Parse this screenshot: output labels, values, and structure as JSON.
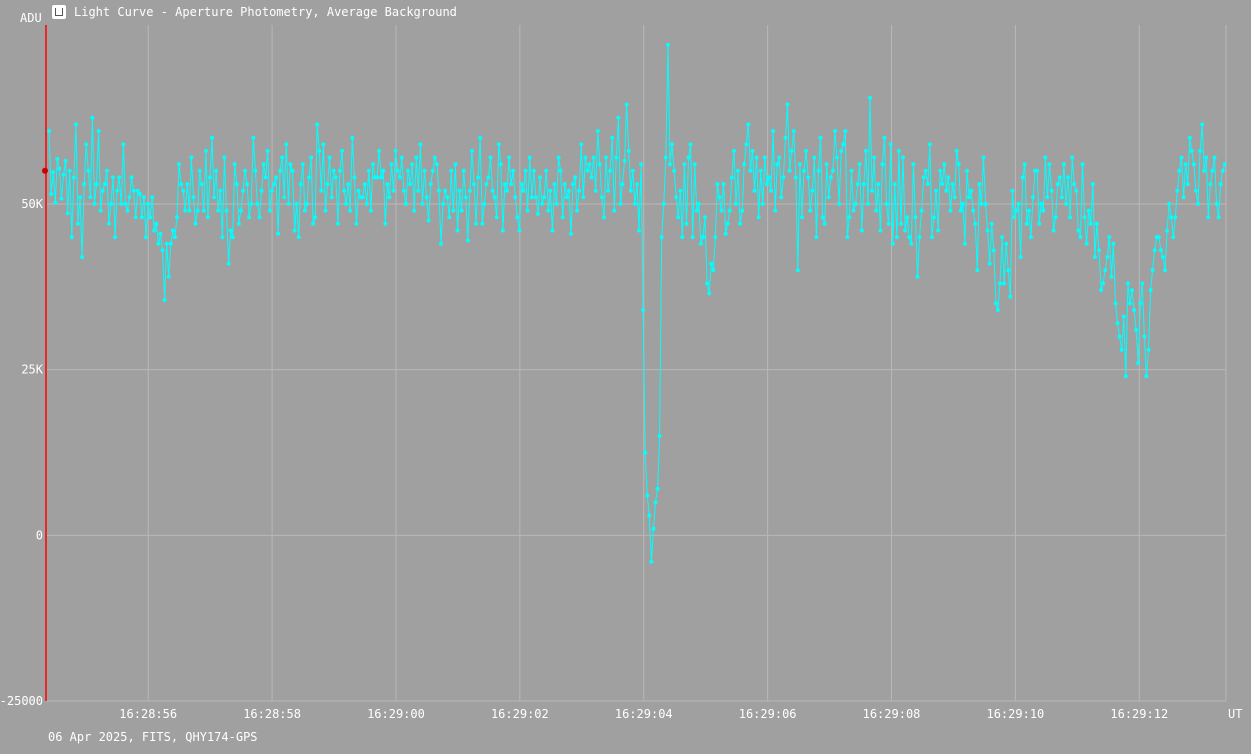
{
  "window": {
    "title": "Light Curve - Aperture Photometry, Average Background",
    "icon": "light-curve-app-icon"
  },
  "footer": {
    "info": "06 Apr 2025, FITS, QHY174-GPS"
  },
  "colors": {
    "background": "#a0a0a0",
    "grid": "#b8b8b8",
    "series": "#00ffff",
    "cursor": "#ff0000",
    "text": "#ffffff"
  },
  "chart_data": {
    "type": "line",
    "title": "Light Curve - Aperture Photometry, Average Background",
    "ylabel": "ADU",
    "xlabel": "UT",
    "ylim": [
      -25000,
      77000
    ],
    "xlim_seconds_after_16_28": [
      54.35,
      73.4
    ],
    "y_ticks": [
      {
        "value": 50000,
        "label": "50K"
      },
      {
        "value": 25000,
        "label": "25K"
      },
      {
        "value": 0,
        "label": "0"
      },
      {
        "value": -25000,
        "label": "-25000"
      }
    ],
    "x_ticks": [
      {
        "value": 56,
        "label": "16:28:56"
      },
      {
        "value": 58,
        "label": "16:28:58"
      },
      {
        "value": 60,
        "label": "16:29:00"
      },
      {
        "value": 62,
        "label": "16:29:02"
      },
      {
        "value": 64,
        "label": "16:29:04"
      },
      {
        "value": 66,
        "label": "16:29:06"
      },
      {
        "value": 68,
        "label": "16:29:08"
      },
      {
        "value": 70,
        "label": "16:29:10"
      },
      {
        "value": 72,
        "label": "16:29:12"
      }
    ],
    "grid": true,
    "cursor": {
      "x_seconds": 54.35,
      "marker_y": 55000
    },
    "series": [
      {
        "x_start_seconds": 54.4,
        "x_step_seconds": 0.0333,
        "values": [
          61000,
          51500,
          54800,
          50200,
          56800,
          55300,
          50800,
          54400,
          56500,
          48600,
          55000,
          45000,
          54000,
          62000,
          47000,
          51000,
          42000,
          53000,
          59000,
          55000,
          51000,
          63000,
          50000,
          53000,
          61000,
          49000,
          52000,
          53000,
          55000,
          47000,
          50000,
          54000,
          45000,
          52000,
          54000,
          50000,
          59000,
          50000,
          49000,
          51000,
          54000,
          52000,
          48000,
          52000,
          51500,
          48000,
          51000,
          45000,
          50000,
          48000,
          51000,
          46000,
          47000,
          44000,
          45500,
          43000,
          35500,
          44000,
          39000,
          44000,
          46000,
          45000,
          48000,
          56000,
          53000,
          52000,
          49000,
          53000,
          49000,
          57000,
          51000,
          47000,
          49000,
          55000,
          53000,
          49000,
          58000,
          48000,
          54000,
          60000,
          51000,
          55000,
          49000,
          52000,
          45000,
          57000,
          49000,
          41000,
          46000,
          45000,
          56000,
          53000,
          47000,
          49000,
          52000,
          55000,
          53000,
          48000,
          50000,
          60000,
          55000,
          50000,
          48000,
          52000,
          56000,
          54000,
          58000,
          49000,
          52000,
          53000,
          54000,
          45500,
          55000,
          57000,
          51000,
          59000,
          50000,
          56000,
          55000,
          46000,
          50000,
          45000,
          53000,
          56000,
          49000,
          50000,
          54000,
          57000,
          47000,
          48000,
          62000,
          58000,
          52000,
          59000,
          49000,
          53000,
          57000,
          51000,
          55000,
          54000,
          47000,
          55000,
          58000,
          52000,
          50000,
          53000,
          49000,
          60000,
          54000,
          47000,
          52000,
          51000,
          51000,
          53000,
          50000,
          55000,
          49000,
          56000,
          54000,
          54000,
          58000,
          54000,
          55000,
          47000,
          53000,
          51000,
          56000,
          52000,
          58000,
          55000,
          54000,
          57000,
          52000,
          50000,
          55000,
          53000,
          56000,
          49000,
          57000,
          52000,
          59000,
          50000,
          55000,
          51000,
          47500,
          53000,
          55000,
          57000,
          56000,
          52000,
          44000,
          50000,
          52000,
          51000,
          48000,
          55000,
          49000,
          56000,
          46000,
          52000,
          49000,
          55000,
          51000,
          44500,
          52000,
          58000,
          53000,
          47000,
          54000,
          60000,
          47000,
          50000,
          53000,
          54000,
          57000,
          52000,
          51000,
          48000,
          59000,
          56000,
          46000,
          53000,
          52000,
          57000,
          53000,
          55000,
          51000,
          48000,
          46000,
          53000,
          52000,
          55000,
          49000,
          57000,
          51000,
          55000,
          51000,
          48500,
          54000,
          50000,
          51000,
          55000,
          49000,
          52000,
          46000,
          53000,
          50000,
          57000,
          55000,
          48000,
          53000,
          51000,
          52000,
          45500,
          53000,
          54000,
          49000,
          52000,
          59000,
          51000,
          57000,
          55000,
          56000,
          54000,
          57000,
          52000,
          61000,
          56000,
          51000,
          48000,
          57000,
          52000,
          55000,
          60000,
          49000,
          57000,
          63000,
          50000,
          53000,
          56500,
          65000,
          58000,
          52000,
          55000,
          50000,
          53000,
          46000,
          56000,
          34000,
          12500,
          6000,
          3000,
          -4000,
          1000,
          5000,
          7000,
          15000,
          45000,
          50000,
          57000,
          74000,
          56000,
          59000,
          55000,
          51000,
          48000,
          52000,
          45000,
          56000,
          47000,
          57000,
          59000,
          45000,
          56000,
          49000,
          50000,
          44000,
          45000,
          48000,
          38000,
          36500,
          41000,
          40000,
          45000,
          53000,
          51000,
          49000,
          53000,
          45500,
          47000,
          49000,
          54000,
          58000,
          50000,
          55000,
          47000,
          49000,
          56000,
          59000,
          62000,
          55000,
          58000,
          52000,
          57000,
          48000,
          55000,
          50000,
          57000,
          53000,
          54000,
          52000,
          61000,
          49000,
          56000,
          57000,
          51000,
          54000,
          60000,
          65000,
          55000,
          58000,
          61000,
          54000,
          40000,
          56000,
          48000,
          55000,
          58000,
          54000,
          49000,
          52000,
          57000,
          45000,
          55000,
          60000,
          48000,
          47000,
          56000,
          51000,
          54000,
          55000,
          61000,
          57000,
          50000,
          58000,
          59000,
          61000,
          45000,
          48000,
          55000,
          49000,
          50000,
          53000,
          56000,
          46000,
          53000,
          58000,
          50000,
          66000,
          52000,
          57000,
          49000,
          53000,
          46000,
          56000,
          60000,
          50000,
          47000,
          59000,
          44000,
          53000,
          45000,
          58000,
          47000,
          57000,
          46000,
          48000,
          45000,
          44000,
          56000,
          48000,
          39000,
          45000,
          49000,
          54000,
          55000,
          53000,
          59000,
          45000,
          48000,
          52000,
          46000,
          55000,
          53000,
          56000,
          52000,
          54000,
          49000,
          53000,
          51000,
          58000,
          56000,
          49000,
          50000,
          44000,
          55000,
          51000,
          52000,
          49000,
          47000,
          40000,
          53000,
          50000,
          57000,
          50000,
          46000,
          41000,
          47000,
          43000,
          35000,
          34000,
          38000,
          45000,
          38000,
          44000,
          40000,
          36000,
          52000,
          48000,
          49000,
          50000,
          42000,
          54000,
          56000,
          47000,
          49000,
          45000,
          51000,
          55000,
          55000,
          47000,
          50000,
          49000,
          57000,
          51000,
          56000,
          52000,
          46000,
          48000,
          53000,
          54000,
          51000,
          56000,
          50000,
          54000,
          48000,
          57000,
          53000,
          52000,
          46000,
          45000,
          56000,
          48000,
          44000,
          49000,
          47000,
          53000,
          42000,
          47000,
          43000,
          37000,
          38000,
          40000,
          42000,
          45000,
          39000,
          44000,
          35000,
          32000,
          30000,
          28000,
          33000,
          24000,
          38000,
          35000,
          37000,
          34000,
          31000,
          26000,
          35000,
          38000,
          30000,
          24000,
          28000,
          37000,
          40000,
          43000,
          45000,
          45000,
          43000,
          42000,
          40000,
          46000,
          50000,
          48000,
          45000,
          48000,
          52000,
          55000,
          57000,
          51000,
          56000,
          53000,
          60000,
          58000,
          56000,
          52000,
          50000,
          58000,
          62000,
          55000,
          57000,
          48000,
          53000,
          55000,
          57000,
          50000,
          48000,
          53000,
          55000,
          56000,
          58000,
          48000,
          54000,
          62000,
          47000,
          52000,
          53000,
          52000,
          51000,
          43000,
          42000,
          46000,
          49000,
          51000,
          52000,
          55000,
          51000,
          47000,
          45000,
          49000,
          44000,
          46000,
          41000,
          55000,
          58000,
          48000,
          52000,
          52000,
          55000,
          50000,
          46000,
          45000,
          50000,
          49000,
          53000,
          47000,
          52000,
          56000,
          51000,
          54000,
          48000,
          53000,
          47000,
          51000,
          54000,
          46000,
          53000,
          56000,
          53000,
          51000,
          48000,
          52000,
          47000,
          58000,
          57000,
          50000,
          51000,
          56000,
          55000,
          52000
        ]
      }
    ]
  }
}
